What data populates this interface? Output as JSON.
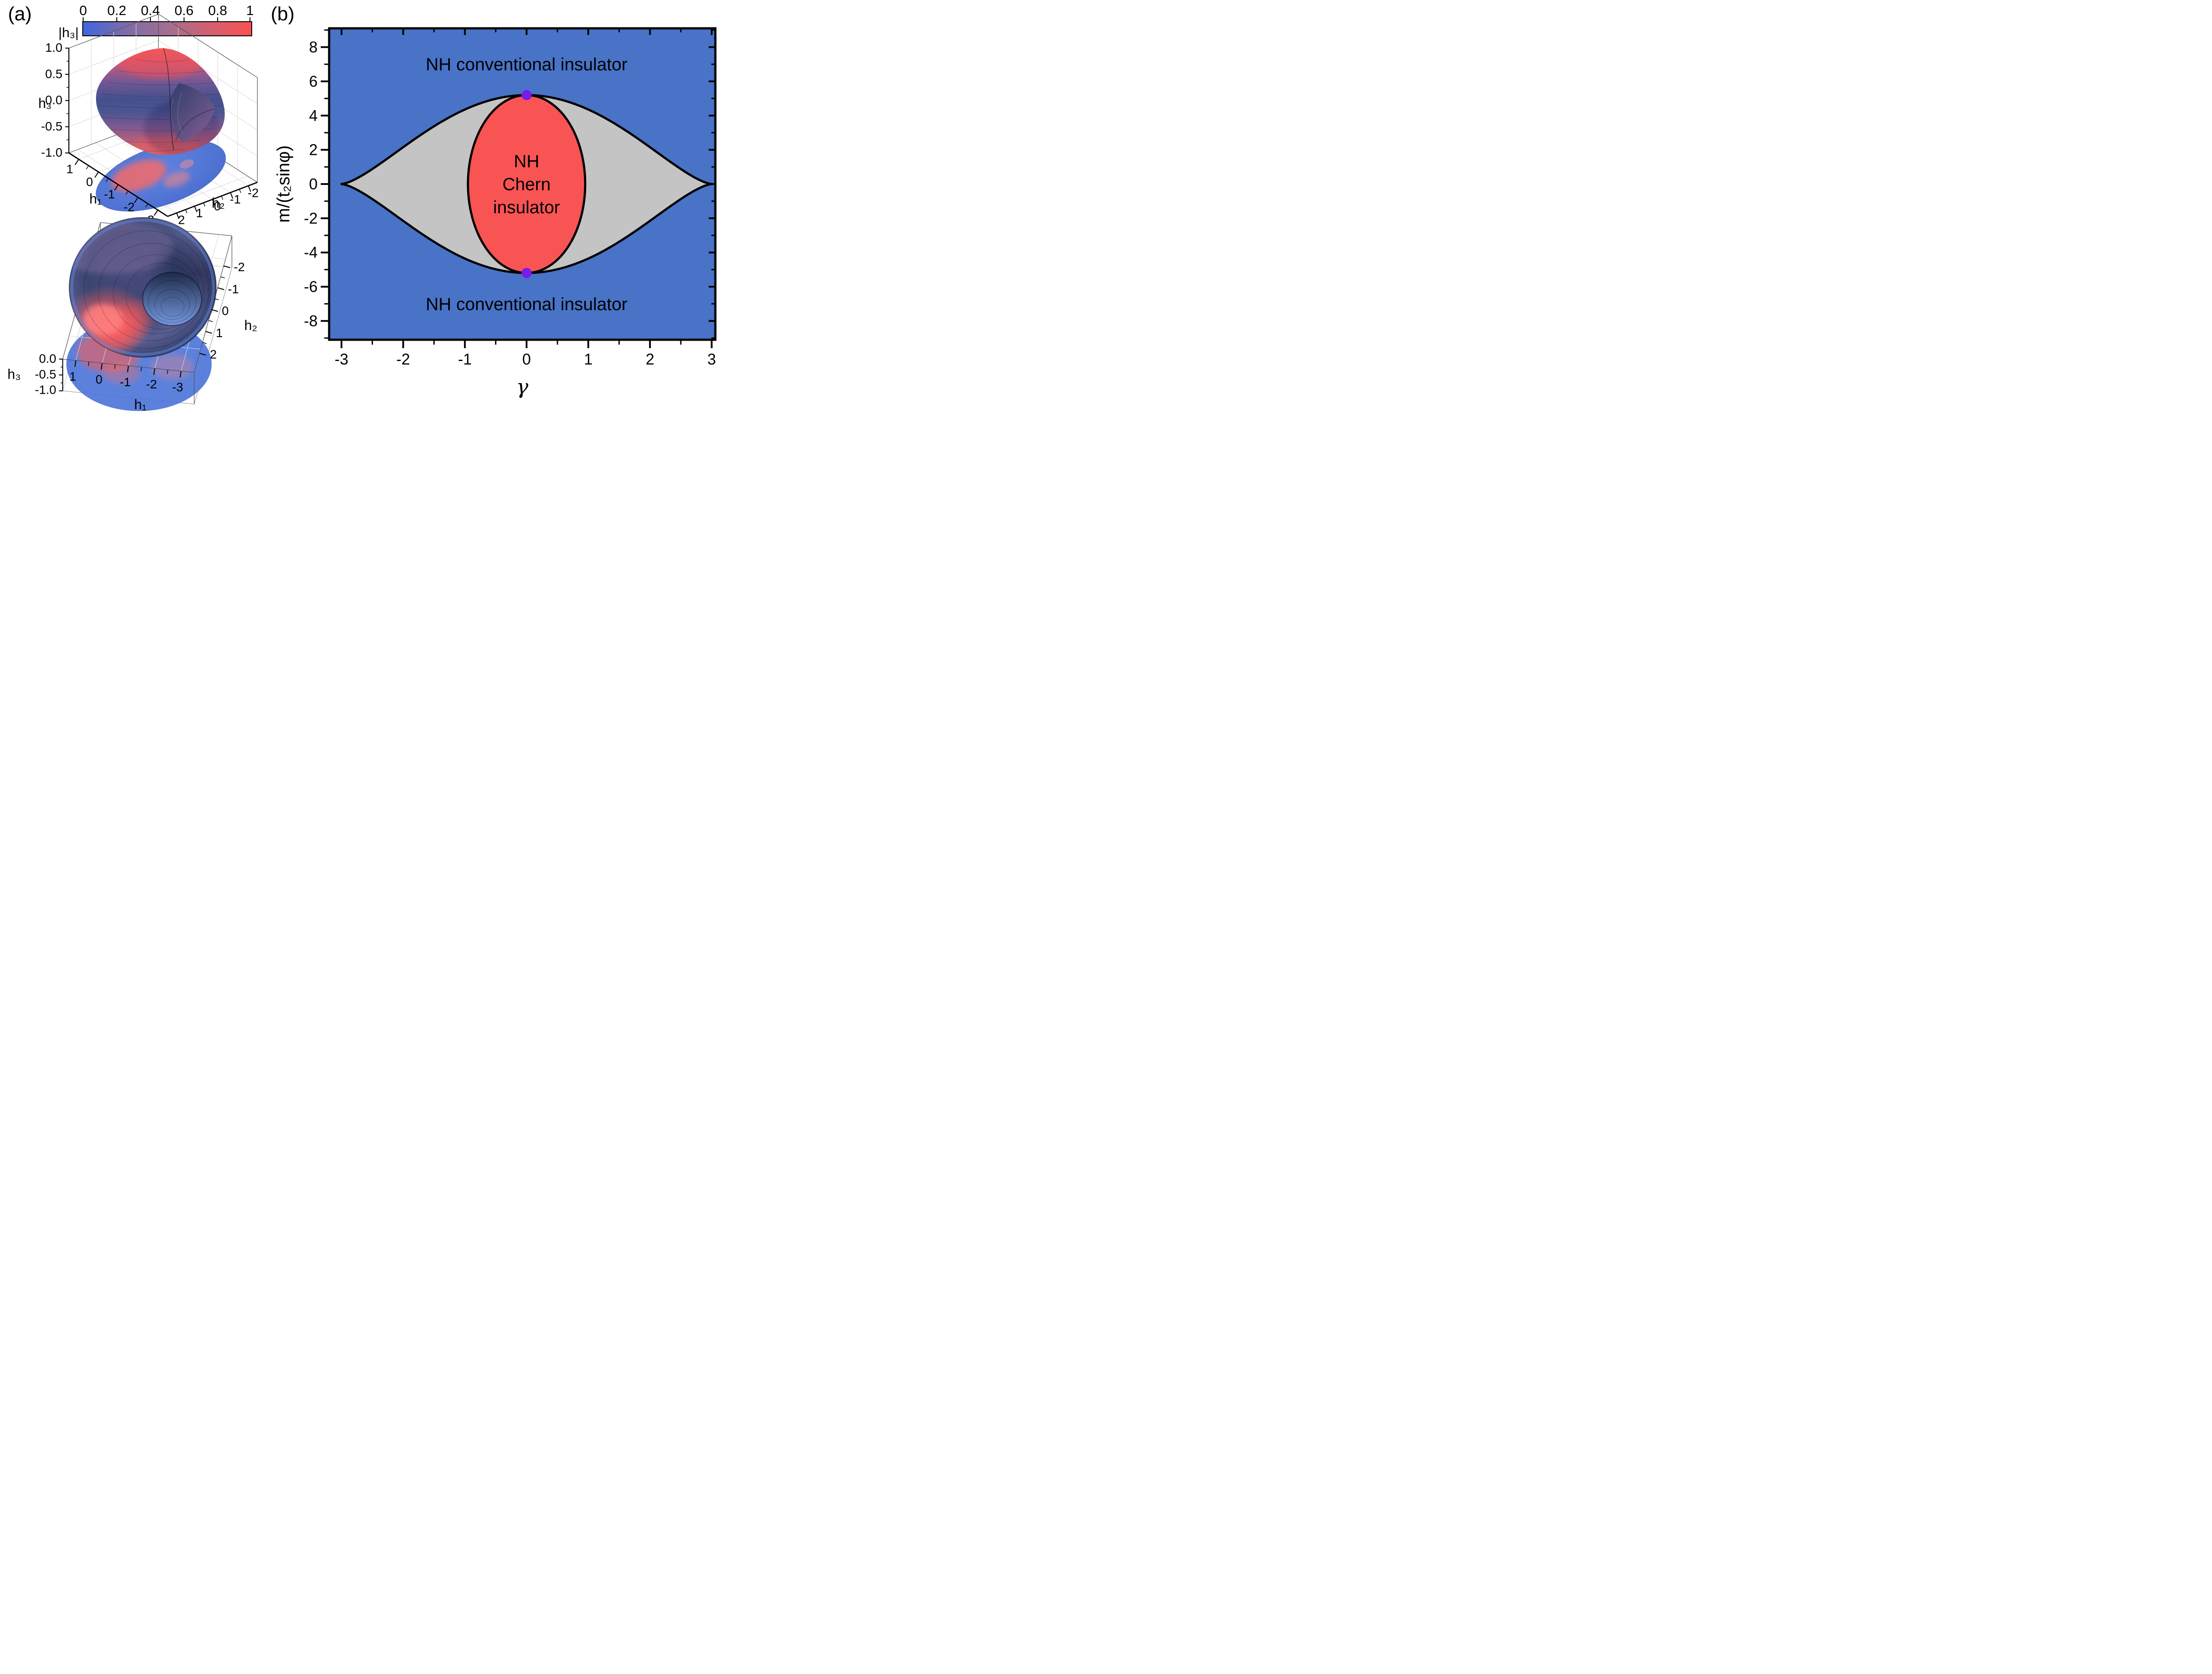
{
  "figure": {
    "panels": [
      {
        "label": "(a)"
      },
      {
        "label": "(b)"
      }
    ]
  },
  "colorbar": {
    "label": "|h₃|",
    "ticks": [
      "0",
      "0.2",
      "0.4",
      "0.6",
      "0.8",
      "1"
    ],
    "range": [
      0,
      1
    ],
    "gradient": [
      "#4066dd",
      "#7d6caa",
      "#a26f92",
      "#d16070",
      "#fa5151"
    ]
  },
  "chart_data": [
    {
      "id": "h_surface_side_view",
      "type": "surface3d",
      "panel": "a",
      "description": "Closed self-intersecting surface swept by (h1,h2,h3), colored by |h3| (blue=0, red=1), with projection shadow on the h1-h2 floor plane",
      "colormap": "blue-to-red by |h3|",
      "axes": {
        "x": {
          "label": "h₁",
          "ticks": [
            "1",
            "0",
            "-1",
            "-2",
            "-3"
          ],
          "range": [
            1.5,
            -3.5
          ]
        },
        "y": {
          "label": "h₂",
          "ticks": [
            "2",
            "1",
            "0",
            "-1",
            "-2"
          ],
          "range": [
            2.5,
            -2.5
          ]
        },
        "z": {
          "label": "h₃",
          "ticks": [
            "1.0",
            "0.5",
            "0.0",
            "-0.5",
            "-1.0"
          ],
          "range": [
            1.0,
            -1.0
          ]
        }
      }
    },
    {
      "id": "h_surface_top_view",
      "type": "surface3d",
      "panel": "a",
      "description": "Same torus-like surface viewed from above; red patch on inner-left ring, blue elsewhere; blue projection shadow with red patch below",
      "colormap": "blue-to-red by |h3|",
      "axes": {
        "x": {
          "label": "h₁",
          "ticks": [
            "1",
            "0",
            "-1",
            "-2",
            "-3"
          ],
          "range": [
            1.5,
            -3.5
          ]
        },
        "y": {
          "label": "h₂",
          "ticks": [
            "-2",
            "-1",
            "0",
            "1",
            "2"
          ],
          "range": [
            -2.5,
            2.5
          ]
        },
        "z": {
          "label": "h₃",
          "ticks": [
            "0.0",
            "-0.5",
            "-1.0"
          ],
          "range": [
            0.0,
            -1.0
          ]
        }
      }
    },
    {
      "id": "phase_diagram",
      "type": "area",
      "panel": "b",
      "xlabel": "γ",
      "ylabel": "m/(t₂sinφ)",
      "xlim": [
        -3.2,
        3.06
      ],
      "ylim": [
        -9.1,
        9.1
      ],
      "xticks": [
        "-3",
        "-2",
        "-1",
        "0",
        "1",
        "2",
        "3"
      ],
      "xtick_values": [
        -3,
        -2,
        -1,
        0,
        1,
        2,
        3
      ],
      "xminor_values": [
        -2.5,
        -1.5,
        -0.5,
        0.5,
        1.5,
        2.5
      ],
      "yticks": [
        "8",
        "6",
        "4",
        "2",
        "0",
        "-2",
        "-4",
        "-6",
        "-8"
      ],
      "ytick_values": [
        8,
        6,
        4,
        2,
        0,
        -2,
        -4,
        -6,
        -8
      ],
      "yminor_values": [
        9,
        7,
        5,
        3,
        1,
        -1,
        -3,
        -5,
        -7,
        -9
      ],
      "grid": false,
      "colors": {
        "conventional": "#4873c6",
        "gapless": "#c4c4c4",
        "chern": "#f95454",
        "transition_point": "#7a1be8",
        "boundary": "#000000"
      },
      "gapless_boundary": {
        "tips": [
          -3,
          3
        ],
        "peak": 5.196,
        "exponent": 1.5,
        "formula": "m = ±5.196·(1−(γ/3)²)^1.5"
      },
      "chern_ellipse": {
        "cx": 0,
        "cy": 0,
        "rx": 0.95,
        "ry": 5.196
      },
      "transition_points": [
        [
          0,
          5.196
        ],
        [
          0,
          -5.196
        ]
      ],
      "region_labels": [
        {
          "text": "NH conventional insulator",
          "x": 0,
          "y": 7.0,
          "region": "top"
        },
        {
          "text": "NH",
          "x": 0,
          "y": 1.35,
          "region": "center"
        },
        {
          "text": "Chern",
          "x": 0,
          "y": 0,
          "region": "center"
        },
        {
          "text": "insulator",
          "x": 0,
          "y": -1.35,
          "region": "center"
        },
        {
          "text": "NH conventional insulator",
          "x": 0,
          "y": -7.0,
          "region": "bottom"
        }
      ]
    }
  ]
}
